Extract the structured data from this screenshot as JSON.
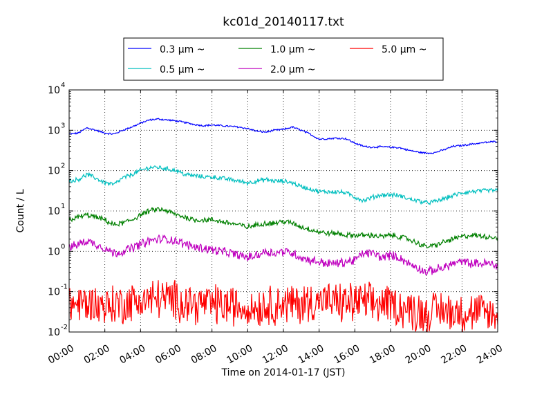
{
  "chart_data": {
    "type": "line",
    "title": "kc01d_20140117.txt",
    "xlabel": "Time on 2014-01-17 (JST)",
    "ylabel": "Count / L",
    "x_unit": "hour",
    "xlim": [
      0,
      24
    ],
    "ylim": [
      0.01,
      10000
    ],
    "yscale": "log",
    "grid": true,
    "legend_position": "top-center",
    "x_tick_labels": [
      "00:00",
      "02:00",
      "04:00",
      "06:00",
      "08:00",
      "10:00",
      "12:00",
      "14:00",
      "16:00",
      "18:00",
      "20:00",
      "22:00",
      "24:00"
    ],
    "y_tick_labels": [
      {
        "base": "10",
        "exp": "-2"
      },
      {
        "base": "10",
        "exp": "-1"
      },
      {
        "base": "10",
        "exp": "0"
      },
      {
        "base": "10",
        "exp": "1"
      },
      {
        "base": "10",
        "exp": "2"
      },
      {
        "base": "10",
        "exp": "3"
      },
      {
        "base": "10",
        "exp": "4"
      }
    ],
    "series": [
      {
        "name": "0.3 μm ~",
        "color": "#0000ff",
        "noise": 0.02,
        "x": [
          0,
          0.5,
          1,
          1.5,
          2,
          2.5,
          3,
          3.5,
          4,
          4.5,
          5,
          5.5,
          6,
          6.5,
          7,
          7.5,
          8,
          8.5,
          9,
          9.5,
          10,
          10.5,
          11,
          11.5,
          12,
          12.5,
          13,
          13.5,
          14,
          14.5,
          15,
          15.5,
          16,
          16.5,
          17,
          17.5,
          18,
          18.5,
          19,
          19.5,
          20,
          20.5,
          21,
          21.5,
          22,
          22.5,
          23,
          23.5,
          24
        ],
        "y": [
          800,
          850,
          1150,
          1000,
          850,
          800,
          1000,
          1200,
          1500,
          1800,
          1900,
          1800,
          1700,
          1550,
          1400,
          1300,
          1350,
          1300,
          1250,
          1200,
          1100,
          950,
          900,
          1000,
          1050,
          1200,
          1000,
          800,
          600,
          620,
          640,
          620,
          480,
          400,
          380,
          390,
          380,
          370,
          320,
          290,
          270,
          280,
          330,
          400,
          420,
          450,
          480,
          510,
          530
        ]
      },
      {
        "name": "0.5 μm ~",
        "color": "#00bfbf",
        "noise": 0.05,
        "x": [
          0,
          0.5,
          1,
          1.5,
          2,
          2.5,
          3,
          3.5,
          4,
          4.5,
          5,
          5.5,
          6,
          6.5,
          7,
          7.5,
          8,
          8.5,
          9,
          9.5,
          10,
          10.5,
          11,
          11.5,
          12,
          12.5,
          13,
          13.5,
          14,
          14.5,
          15,
          15.5,
          16,
          16.5,
          17,
          17.5,
          18,
          18.5,
          19,
          19.5,
          20,
          20.5,
          21,
          21.5,
          22,
          22.5,
          23,
          23.5,
          24
        ],
        "y": [
          55,
          60,
          80,
          65,
          50,
          45,
          65,
          80,
          100,
          120,
          120,
          110,
          100,
          80,
          75,
          70,
          70,
          65,
          60,
          55,
          50,
          55,
          60,
          55,
          55,
          50,
          40,
          35,
          30,
          30,
          30,
          28,
          22,
          18,
          22,
          25,
          25,
          24,
          20,
          18,
          16,
          17,
          20,
          24,
          28,
          30,
          31,
          32,
          33
        ]
      },
      {
        "name": "1.0 μm ~",
        "color": "#008000",
        "noise": 0.06,
        "x": [
          0,
          0.5,
          1,
          1.5,
          2,
          2.5,
          3,
          3.5,
          4,
          4.5,
          5,
          5.5,
          6,
          6.5,
          7,
          7.5,
          8,
          8.5,
          9,
          9.5,
          10,
          10.5,
          11,
          11.5,
          12,
          12.5,
          13,
          13.5,
          14,
          14.5,
          15,
          15.5,
          16,
          16.5,
          17,
          17.5,
          18,
          18.5,
          19,
          19.5,
          20,
          20.5,
          21,
          21.5,
          22,
          22.5,
          23,
          23.5,
          24
        ],
        "y": [
          6,
          7,
          8,
          7,
          6,
          4.5,
          5,
          6,
          8,
          10,
          11,
          10,
          8,
          7,
          6,
          6,
          6,
          5.5,
          5,
          4.5,
          4,
          4.5,
          5,
          5,
          5.5,
          5,
          4,
          3.5,
          3,
          2.8,
          2.8,
          2.5,
          2.5,
          2.5,
          2.5,
          2.3,
          2.5,
          2.3,
          2,
          1.6,
          1.3,
          1.4,
          1.7,
          2,
          2.3,
          2.5,
          2.4,
          2.3,
          2.2
        ]
      },
      {
        "name": "2.0 μm ~",
        "color": "#bf00bf",
        "noise": 0.1,
        "x": [
          0,
          0.5,
          1,
          1.5,
          2,
          2.5,
          3,
          3.5,
          4,
          4.5,
          5,
          5.5,
          6,
          6.5,
          7,
          7.5,
          8,
          8.5,
          9,
          9.5,
          10,
          10.5,
          11,
          11.5,
          12,
          12.5,
          13,
          13.5,
          14,
          14.5,
          15,
          15.5,
          16,
          16.5,
          17,
          17.5,
          18,
          18.5,
          19,
          19.5,
          20,
          20.5,
          21,
          21.5,
          22,
          22.5,
          23,
          23.5,
          24
        ],
        "y": [
          1.2,
          1.5,
          1.8,
          1.5,
          1.2,
          0.9,
          1,
          1.2,
          1.5,
          1.8,
          2,
          2,
          1.8,
          1.5,
          1.3,
          1.2,
          1.1,
          1,
          0.9,
          0.8,
          0.7,
          0.8,
          1,
          0.9,
          1,
          0.9,
          0.7,
          0.6,
          0.55,
          0.5,
          0.5,
          0.55,
          0.6,
          0.9,
          0.9,
          0.7,
          0.8,
          0.7,
          0.5,
          0.4,
          0.3,
          0.35,
          0.4,
          0.5,
          0.55,
          0.5,
          0.5,
          0.5,
          0.45
        ]
      },
      {
        "name": "5.0 μm ~",
        "color": "#ff0000",
        "noise": 0.45,
        "x": [
          0,
          1,
          2,
          3,
          4,
          5,
          6,
          7,
          8,
          9,
          10,
          11,
          12,
          13,
          14,
          15,
          16,
          17,
          18,
          19,
          20,
          21,
          22,
          23,
          24
        ],
        "y": [
          0.05,
          0.05,
          0.045,
          0.05,
          0.06,
          0.07,
          0.06,
          0.05,
          0.05,
          0.045,
          0.04,
          0.045,
          0.05,
          0.05,
          0.06,
          0.05,
          0.055,
          0.05,
          0.05,
          0.035,
          0.03,
          0.035,
          0.03,
          0.03,
          0.025
        ]
      }
    ]
  }
}
